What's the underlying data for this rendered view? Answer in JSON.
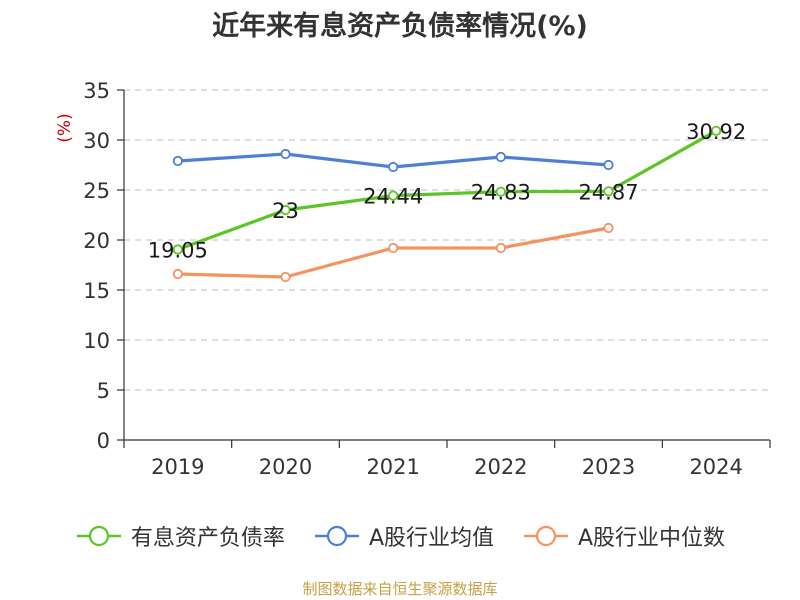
{
  "chart_data": {
    "type": "line",
    "title": "近年来有息资产负债率情况(%)",
    "ylabel": "(%)",
    "categories": [
      "2019",
      "2020",
      "2021",
      "2022",
      "2023",
      "2024"
    ],
    "ylim": [
      0,
      35
    ],
    "yticks": [
      "0",
      "5",
      "10",
      "15",
      "20",
      "25",
      "30",
      "35"
    ],
    "grid": true,
    "legend_position": "bottom",
    "series": [
      {
        "name": "有息资产负债率",
        "color": "#5cc424",
        "values": [
          19.05,
          23,
          24.44,
          24.83,
          24.87,
          30.92
        ],
        "labels": [
          "19.05",
          "23",
          "24.44",
          "24.83",
          "24.87",
          "30.92"
        ]
      },
      {
        "name": "A股行业均值",
        "color": "#4e7fd6",
        "values": [
          27.9,
          28.6,
          27.3,
          28.3,
          27.5,
          null
        ]
      },
      {
        "name": "A股行业中位数",
        "color": "#f4935e",
        "values": [
          16.6,
          16.3,
          19.2,
          19.2,
          21.2,
          null
        ]
      }
    ]
  },
  "source": "制图数据来自恒生聚源数据库"
}
